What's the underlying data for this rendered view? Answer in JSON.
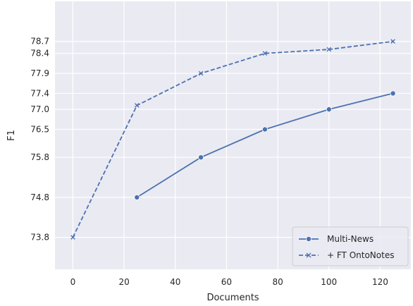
{
  "chart_data": {
    "type": "line",
    "title": "",
    "xlabel": "Documents",
    "ylabel": "F1",
    "xlim": [
      -7,
      132
    ],
    "ylim": [
      73.0,
      79.7
    ],
    "xticks": [
      0,
      20,
      40,
      60,
      80,
      100,
      120
    ],
    "xtick_labels": [
      "0",
      "20",
      "40",
      "60",
      "80",
      "100",
      "120"
    ],
    "yticks": [
      73.8,
      74.8,
      75.8,
      76.5,
      77.0,
      77.4,
      77.9,
      78.4,
      78.7
    ],
    "ytick_labels": [
      "73.8",
      "74.8",
      "75.8",
      "76.5",
      "77.0",
      "77.4",
      "77.9",
      "78.4",
      "78.7"
    ],
    "grid": true,
    "legend_position": "lower-right",
    "series": [
      {
        "name": "Multi-News",
        "x": [
          25,
          50,
          75,
          100,
          125
        ],
        "values": [
          74.8,
          75.8,
          76.5,
          77.0,
          77.4
        ],
        "color": "#4c72b0",
        "line_style": "solid",
        "marker": "circle"
      },
      {
        "name": "+ FT OntoNotes",
        "x": [
          0,
          25,
          50,
          75,
          100,
          125
        ],
        "values": [
          73.8,
          77.1,
          77.9,
          78.4,
          78.5,
          78.7
        ],
        "color": "#4c72b0",
        "line_style": "dashed",
        "marker": "x"
      }
    ]
  }
}
